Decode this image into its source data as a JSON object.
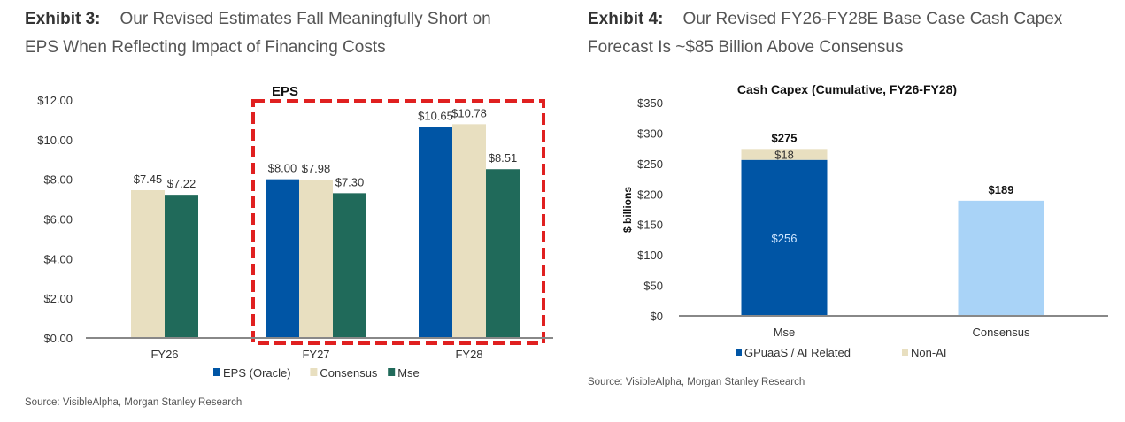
{
  "exhibit3": {
    "label": "Exhibit 3:",
    "title_line1": "Our Revised Estimates Fall Meaningfully Short on",
    "title_line2": "EPS When Reflecting Impact of Financing Costs",
    "source": "Source: VisibleAlpha, Morgan Stanley Research"
  },
  "exhibit4": {
    "label": "Exhibit 4:",
    "title_line1": "Our Revised FY26-FY28E Base Case Cash Capex",
    "title_line2": "Forecast Is ~$85 Billion Above Consensus",
    "source": "Source: VisibleAlpha, Morgan Stanley Research"
  },
  "chart_data": [
    {
      "type": "bar",
      "title": "",
      "highlight_label": "EPS",
      "highlight_categories": [
        "FY27",
        "FY28"
      ],
      "highlight_color": "#e02020",
      "categories": [
        "FY26",
        "FY27",
        "FY28"
      ],
      "ylim": [
        0,
        12
      ],
      "yticks": [
        "$0.00",
        "$2.00",
        "$4.00",
        "$6.00",
        "$8.00",
        "$10.00",
        "$12.00"
      ],
      "ytick_values": [
        0,
        2,
        4,
        6,
        8,
        10,
        12
      ],
      "grid": false,
      "legend": "bottom",
      "series": [
        {
          "name": "EPS (Oracle)",
          "color": "#0055a5",
          "values": [
            null,
            8.0,
            10.65
          ],
          "labels": [
            "",
            "$8.00",
            "$10.65"
          ]
        },
        {
          "name": "Consensus",
          "color": "#e8dfc0",
          "values": [
            7.45,
            7.98,
            10.78
          ],
          "labels": [
            "$7.45",
            "$7.98",
            "$10.78"
          ]
        },
        {
          "name": "Mse",
          "color": "#206a5a",
          "values": [
            7.22,
            7.3,
            8.51
          ],
          "labels": [
            "$7.22",
            "$7.30",
            "$8.51"
          ]
        }
      ]
    },
    {
      "type": "bar",
      "stacked": true,
      "title": "Cash Capex (Cumulative, FY26-FY28)",
      "ylabel": "$ billions",
      "categories": [
        "Mse",
        "Consensus"
      ],
      "ylim": [
        0,
        350
      ],
      "yticks": [
        "$0",
        "$50",
        "$100",
        "$150",
        "$200",
        "$250",
        "$300",
        "$350"
      ],
      "ytick_values": [
        0,
        50,
        100,
        150,
        200,
        250,
        300,
        350
      ],
      "grid": false,
      "legend": "bottom",
      "series": [
        {
          "name": "GPuaaS / AI Related",
          "color": "#0055a5",
          "values": [
            256,
            null
          ],
          "labels": [
            "$256",
            ""
          ]
        },
        {
          "name": "Non-AI",
          "color": "#e8dfc0",
          "values": [
            18,
            null
          ],
          "labels": [
            "$18",
            ""
          ]
        },
        {
          "name": "",
          "color": "#a9d3f7",
          "values": [
            null,
            189
          ],
          "labels": [
            "",
            ""
          ]
        }
      ],
      "totals": [
        "$275",
        "$189"
      ]
    }
  ]
}
